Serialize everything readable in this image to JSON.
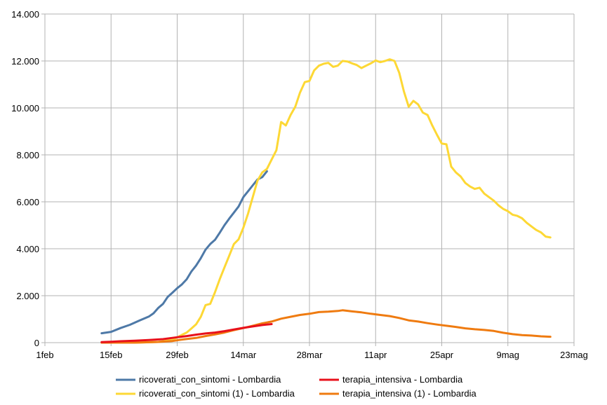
{
  "chart_data": {
    "type": "line",
    "title": "",
    "xlabel": "",
    "ylabel": "",
    "ylim": [
      0,
      14000
    ],
    "y_ticks": [
      0,
      2000,
      4000,
      6000,
      8000,
      10000,
      12000,
      14000
    ],
    "y_tick_labels": [
      "0",
      "2.000",
      "4.000",
      "6.000",
      "8.000",
      "10.000",
      "12.000",
      "14.000"
    ],
    "xlim": [
      "2020-02-01",
      "2020-05-23"
    ],
    "x_ticks": [
      "2020-02-01",
      "2020-02-15",
      "2020-02-29",
      "2020-03-14",
      "2020-03-28",
      "2020-04-11",
      "2020-04-25",
      "2020-05-09",
      "2020-05-23"
    ],
    "x_tick_labels": [
      "1feb",
      "15feb",
      "29feb",
      "14mar",
      "28mar",
      "11apr",
      "25apr",
      "9mag",
      "23mag"
    ],
    "grid": true,
    "legend_position": "bottom",
    "series": [
      {
        "name": "ricoverati_con_sintomi - Lombardia",
        "color": "#4e79a7",
        "points": [
          [
            "2020-02-13",
            400
          ],
          [
            "2020-02-15",
            460
          ],
          [
            "2020-02-17",
            620
          ],
          [
            "2020-02-19",
            760
          ],
          [
            "2020-02-21",
            940
          ],
          [
            "2020-02-23",
            1110
          ],
          [
            "2020-02-24",
            1250
          ],
          [
            "2020-02-25",
            1480
          ],
          [
            "2020-02-26",
            1650
          ],
          [
            "2020-02-27",
            1950
          ],
          [
            "2020-02-28",
            2130
          ],
          [
            "2020-02-29",
            2320
          ],
          [
            "2020-03-01",
            2480
          ],
          [
            "2020-03-02",
            2700
          ],
          [
            "2020-03-03",
            3030
          ],
          [
            "2020-03-04",
            3280
          ],
          [
            "2020-03-05",
            3600
          ],
          [
            "2020-03-06",
            3960
          ],
          [
            "2020-03-07",
            4200
          ],
          [
            "2020-03-08",
            4380
          ],
          [
            "2020-03-09",
            4680
          ],
          [
            "2020-03-10",
            5000
          ],
          [
            "2020-03-11",
            5280
          ],
          [
            "2020-03-12",
            5540
          ],
          [
            "2020-03-13",
            5800
          ],
          [
            "2020-03-14",
            6200
          ],
          [
            "2020-03-15",
            6450
          ],
          [
            "2020-03-16",
            6700
          ],
          [
            "2020-03-17",
            6950
          ],
          [
            "2020-03-18",
            7050
          ],
          [
            "2020-03-19",
            7300
          ]
        ]
      },
      {
        "name": "terapia_intensiva - Lombardia",
        "color": "#e8101b",
        "points": [
          [
            "2020-02-13",
            20
          ],
          [
            "2020-02-15",
            40
          ],
          [
            "2020-02-17",
            60
          ],
          [
            "2020-02-20",
            80
          ],
          [
            "2020-02-23",
            110
          ],
          [
            "2020-02-26",
            150
          ],
          [
            "2020-02-29",
            230
          ],
          [
            "2020-03-02",
            280
          ],
          [
            "2020-03-04",
            340
          ],
          [
            "2020-03-06",
            390
          ],
          [
            "2020-03-08",
            430
          ],
          [
            "2020-03-10",
            490
          ],
          [
            "2020-03-12",
            560
          ],
          [
            "2020-03-14",
            630
          ],
          [
            "2020-03-16",
            690
          ],
          [
            "2020-03-18",
            750
          ],
          [
            "2020-03-20",
            790
          ]
        ]
      },
      {
        "name": "ricoverati_con_sintomi (1) - Lombardia",
        "color": "#fdd835",
        "points": [
          [
            "2020-02-13",
            0
          ],
          [
            "2020-02-20",
            0
          ],
          [
            "2020-02-25",
            30
          ],
          [
            "2020-02-28",
            120
          ],
          [
            "2020-03-01",
            330
          ],
          [
            "2020-03-02",
            430
          ],
          [
            "2020-03-03",
            600
          ],
          [
            "2020-03-04",
            780
          ],
          [
            "2020-03-05",
            1100
          ],
          [
            "2020-03-06",
            1600
          ],
          [
            "2020-03-07",
            1650
          ],
          [
            "2020-03-08",
            2150
          ],
          [
            "2020-03-09",
            2700
          ],
          [
            "2020-03-10",
            3200
          ],
          [
            "2020-03-11",
            3700
          ],
          [
            "2020-03-12",
            4200
          ],
          [
            "2020-03-13",
            4400
          ],
          [
            "2020-03-14",
            4900
          ],
          [
            "2020-03-15",
            5500
          ],
          [
            "2020-03-16",
            6200
          ],
          [
            "2020-03-17",
            6900
          ],
          [
            "2020-03-18",
            7250
          ],
          [
            "2020-03-19",
            7400
          ],
          [
            "2020-03-20",
            7800
          ],
          [
            "2020-03-21",
            8200
          ],
          [
            "2020-03-22",
            9400
          ],
          [
            "2020-03-23",
            9250
          ],
          [
            "2020-03-24",
            9700
          ],
          [
            "2020-03-25",
            10050
          ],
          [
            "2020-03-26",
            10650
          ],
          [
            "2020-03-27",
            11100
          ],
          [
            "2020-03-28",
            11150
          ],
          [
            "2020-03-29",
            11600
          ],
          [
            "2020-03-30",
            11800
          ],
          [
            "2020-03-31",
            11880
          ],
          [
            "2020-04-01",
            11920
          ],
          [
            "2020-04-02",
            11750
          ],
          [
            "2020-04-03",
            11800
          ],
          [
            "2020-04-04",
            12000
          ],
          [
            "2020-04-05",
            11980
          ],
          [
            "2020-04-06",
            11900
          ],
          [
            "2020-04-07",
            11830
          ],
          [
            "2020-04-08",
            11700
          ],
          [
            "2020-04-09",
            11800
          ],
          [
            "2020-04-10",
            11900
          ],
          [
            "2020-04-11",
            12020
          ],
          [
            "2020-04-12",
            11950
          ],
          [
            "2020-04-13",
            12000
          ],
          [
            "2020-04-14",
            12070
          ],
          [
            "2020-04-15",
            12000
          ],
          [
            "2020-04-16",
            11500
          ],
          [
            "2020-04-17",
            10700
          ],
          [
            "2020-04-18",
            10050
          ],
          [
            "2020-04-19",
            10300
          ],
          [
            "2020-04-20",
            10150
          ],
          [
            "2020-04-21",
            9800
          ],
          [
            "2020-04-22",
            9700
          ],
          [
            "2020-04-23",
            9250
          ],
          [
            "2020-04-24",
            8850
          ],
          [
            "2020-04-25",
            8480
          ],
          [
            "2020-04-26",
            8450
          ],
          [
            "2020-04-27",
            7500
          ],
          [
            "2020-04-28",
            7250
          ],
          [
            "2020-04-29",
            7080
          ],
          [
            "2020-04-30",
            6800
          ],
          [
            "2020-05-01",
            6650
          ],
          [
            "2020-05-02",
            6550
          ],
          [
            "2020-05-03",
            6600
          ],
          [
            "2020-05-04",
            6350
          ],
          [
            "2020-05-05",
            6200
          ],
          [
            "2020-05-06",
            6050
          ],
          [
            "2020-05-07",
            5850
          ],
          [
            "2020-05-08",
            5700
          ],
          [
            "2020-05-09",
            5600
          ],
          [
            "2020-05-10",
            5450
          ],
          [
            "2020-05-11",
            5400
          ],
          [
            "2020-05-12",
            5300
          ],
          [
            "2020-05-13",
            5100
          ],
          [
            "2020-05-14",
            4950
          ],
          [
            "2020-05-15",
            4800
          ],
          [
            "2020-05-16",
            4700
          ],
          [
            "2020-05-17",
            4520
          ],
          [
            "2020-05-18",
            4480
          ]
        ]
      },
      {
        "name": "terapia_intensiva (1) - Lombardia",
        "color": "#ef7b10",
        "points": [
          [
            "2020-02-13",
            0
          ],
          [
            "2020-02-20",
            0
          ],
          [
            "2020-02-25",
            30
          ],
          [
            "2020-02-28",
            70
          ],
          [
            "2020-03-01",
            130
          ],
          [
            "2020-03-04",
            200
          ],
          [
            "2020-03-06",
            280
          ],
          [
            "2020-03-08",
            350
          ],
          [
            "2020-03-10",
            430
          ],
          [
            "2020-03-12",
            530
          ],
          [
            "2020-03-14",
            620
          ],
          [
            "2020-03-16",
            720
          ],
          [
            "2020-03-18",
            820
          ],
          [
            "2020-03-20",
            900
          ],
          [
            "2020-03-22",
            1020
          ],
          [
            "2020-03-24",
            1100
          ],
          [
            "2020-03-26",
            1180
          ],
          [
            "2020-03-28",
            1230
          ],
          [
            "2020-03-30",
            1300
          ],
          [
            "2020-04-01",
            1320
          ],
          [
            "2020-04-03",
            1350
          ],
          [
            "2020-04-04",
            1380
          ],
          [
            "2020-04-06",
            1330
          ],
          [
            "2020-04-08",
            1290
          ],
          [
            "2020-04-10",
            1230
          ],
          [
            "2020-04-12",
            1180
          ],
          [
            "2020-04-14",
            1130
          ],
          [
            "2020-04-16",
            1050
          ],
          [
            "2020-04-18",
            950
          ],
          [
            "2020-04-20",
            900
          ],
          [
            "2020-04-22",
            830
          ],
          [
            "2020-04-24",
            770
          ],
          [
            "2020-04-26",
            720
          ],
          [
            "2020-04-28",
            670
          ],
          [
            "2020-04-30",
            610
          ],
          [
            "2020-05-02",
            570
          ],
          [
            "2020-05-04",
            540
          ],
          [
            "2020-05-06",
            500
          ],
          [
            "2020-05-08",
            420
          ],
          [
            "2020-05-10",
            360
          ],
          [
            "2020-05-12",
            320
          ],
          [
            "2020-05-14",
            300
          ],
          [
            "2020-05-16",
            270
          ],
          [
            "2020-05-18",
            250
          ]
        ]
      }
    ],
    "legend_layout": [
      [
        0,
        1
      ],
      [
        2,
        3
      ]
    ]
  }
}
